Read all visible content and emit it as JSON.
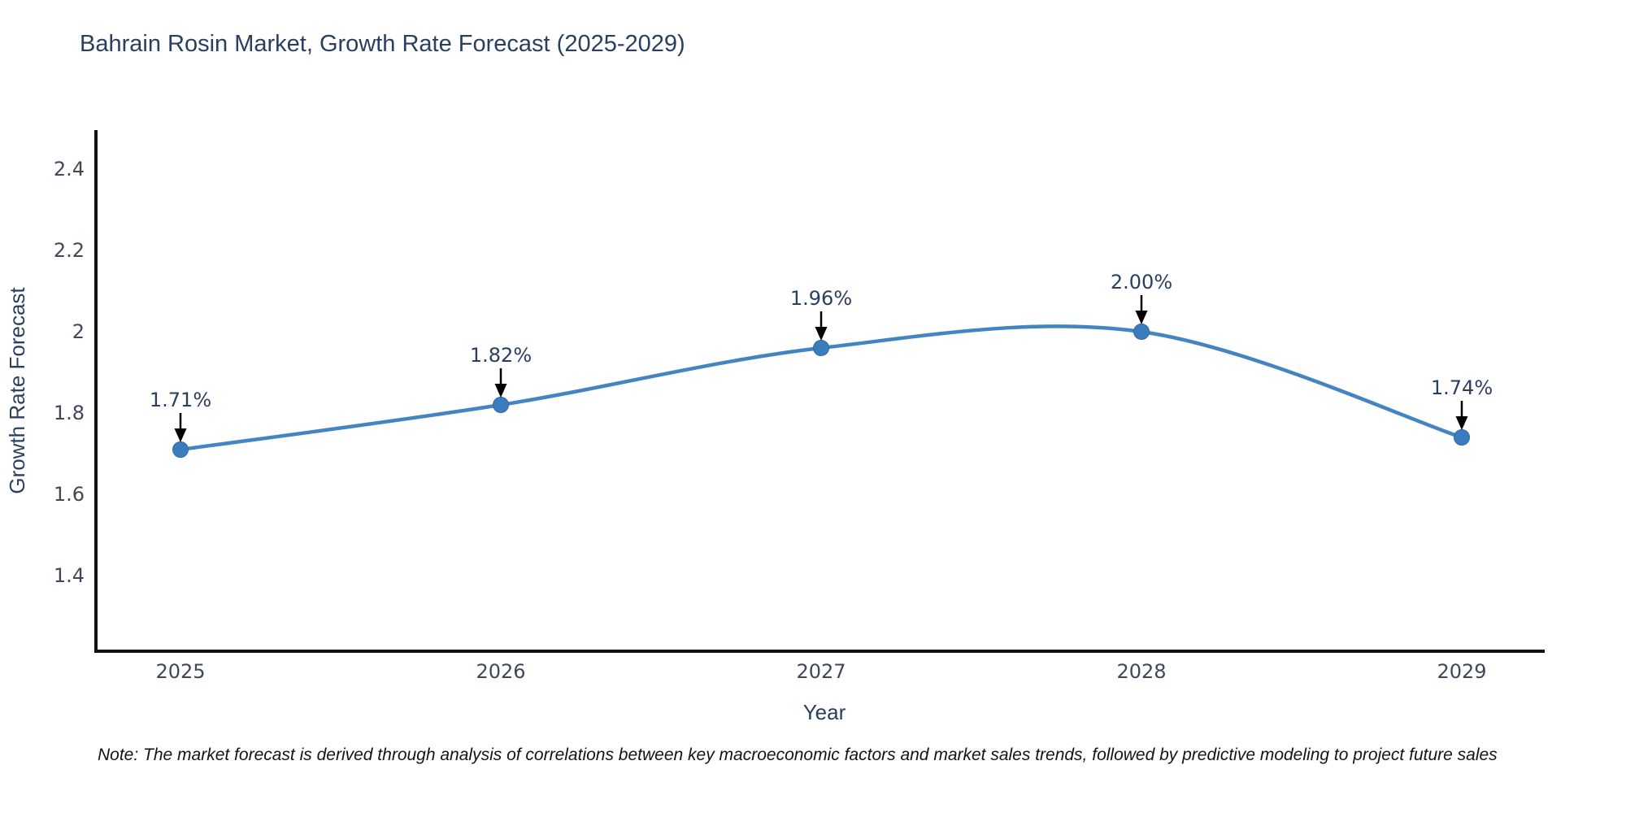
{
  "chart_data": {
    "type": "line",
    "line_shape": "spline",
    "title": "Bahrain Rosin Market, Growth Rate Forecast (2025-2029)",
    "xlabel": "Year",
    "ylabel": "Growth Rate Forecast",
    "x": [
      2025,
      2026,
      2027,
      2028,
      2029
    ],
    "x_labels": [
      "2025",
      "2026",
      "2027",
      "2028",
      "2029"
    ],
    "values": [
      1.71,
      1.82,
      1.96,
      2.0,
      1.74
    ],
    "point_labels": [
      "1.71%",
      "1.82%",
      "1.96%",
      "2.00%",
      "1.74%"
    ],
    "y_ticks": [
      2.4,
      2.2,
      2.0,
      1.8,
      1.6,
      1.4
    ],
    "y_tick_labels": [
      "2.4",
      "2.2",
      "2",
      "1.8",
      "1.6",
      "1.4"
    ],
    "ylim": [
      1.21,
      2.5
    ],
    "grid": false,
    "legend": "none",
    "note": "Note: The market forecast is derived through analysis of correlations between key macroeconomic factors and market sales trends, followed by predictive modeling to project future sales",
    "colors": {
      "line": "#4384c1",
      "marker_fill": "#3a7cbd",
      "marker_edge": "#2e6aa4",
      "axis": "#111111",
      "title": "#2a3f5f",
      "tick": "#3f4857",
      "annotation_text": "#2a3f5f",
      "arrow": "#000000",
      "background": "#ffffff"
    }
  }
}
